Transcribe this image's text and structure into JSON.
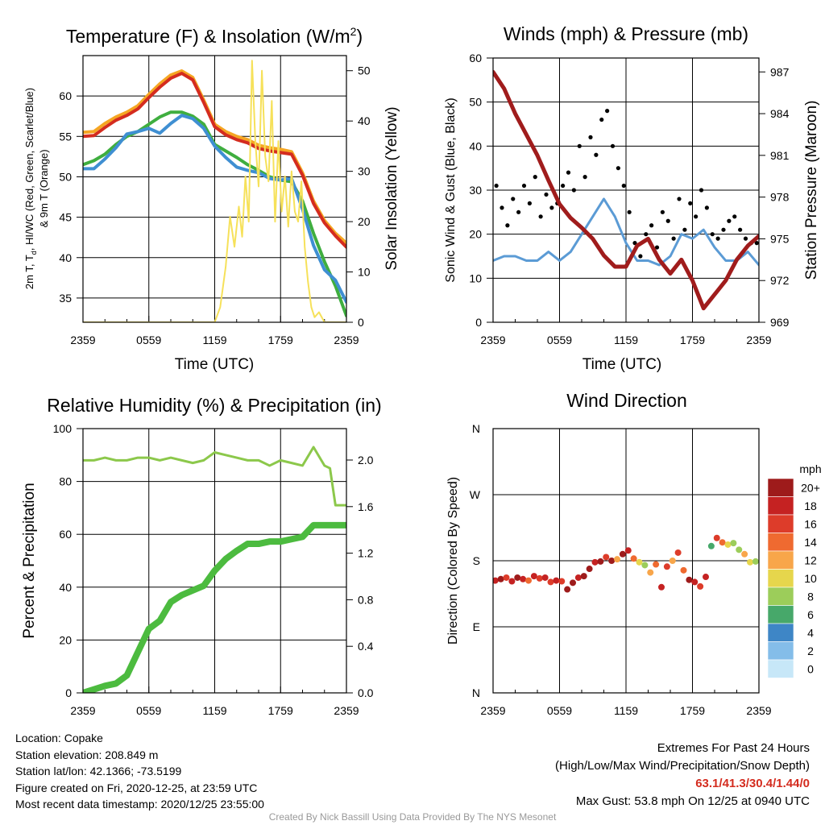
{
  "panels": {
    "temperature": {
      "title_main": "Temperature (F) & Insolation (W/m",
      "title_sup": "2",
      "title_end": ")",
      "ylabel_left_line1_a": "2m T, T",
      "ylabel_left_line1_sub": "d",
      "ylabel_left_line1_b": ", HI/WC (Red, Green, Scarlet/Blue)",
      "ylabel_left_line2": "& 9m T (Orange)",
      "ylabel_right": "Solar Insolation (Yellow)",
      "xlabel": "Time (UTC)"
    },
    "winds": {
      "title": "Winds (mph) & Pressure (mb)",
      "ylabel_left": "Sonic Wind & Gust (Blue, Black)",
      "ylabel_right": "Station Pressure (Maroon)",
      "xlabel": "Time (UTC)"
    },
    "humidity": {
      "title": "Relative Humidity (%) & Precipitation (in)",
      "ylabel_left": "Percent & Precipitation"
    },
    "direction": {
      "title": "Wind Direction",
      "ylabel_left": "Direction (Colored By Speed)",
      "colorbar_title": "mph",
      "colorbar_labels": [
        "20+",
        "18",
        "16",
        "14",
        "12",
        "10",
        "8",
        "6",
        "4",
        "2",
        "0"
      ],
      "colorbar_colors": [
        "#9e1b1b",
        "#c52222",
        "#dd3c2a",
        "#ef6a30",
        "#f8a64a",
        "#e6d64c",
        "#9ccd5a",
        "#47a86a",
        "#3e86c6",
        "#84bde9",
        "#c7e7f8"
      ]
    }
  },
  "colors": {
    "temp_red": "#d42c1f",
    "temp9m_orange": "#f5a623",
    "dewpoint_green": "#3fae3f",
    "heat_index_scarlet": "#ff2a1a",
    "wind_chill_blue": "#3f8fd2",
    "insolation_yellow": "#f6e15a",
    "wind_blue": "#5b9bd5",
    "gust_black": "#000000",
    "pressure_maroon": "#a01c1c",
    "rh_lightgreen": "#8cc84b",
    "precip_green": "#4cbb3f"
  },
  "info": {
    "location": "Location: Copake",
    "elevation": "Station elevation: 208.849 m",
    "latlon": "Station lat/lon: 42.1366; -73.5199",
    "created": "Figure created on Fri, 2020-12-25, at 23:59 UTC",
    "recent": "Most recent data timestamp: 2020/12/25 23:55:00",
    "extremes_title": "Extremes For Past 24 Hours",
    "extremes_sub": "(High/Low/Max Wind/Precipitation/Snow Depth)",
    "extremes_values": "63.1/41.3/30.4/1.44/0",
    "max_gust": "Max Gust: 53.8 mph On 12/25 at 0940 UTC"
  },
  "credit": "Created By Nick Bassill Using Data Provided By The NYS Mesonet",
  "chart_data": [
    {
      "type": "line",
      "title": "Temperature (F) & Insolation (W/m2)",
      "xlabel": "Time (UTC)",
      "x_ticks": [
        "2359",
        "0559",
        "1159",
        "1759",
        "2359"
      ],
      "xlim": [
        0,
        24
      ],
      "ylim": [
        32,
        65
      ],
      "y_ticks": [
        35,
        40,
        45,
        50,
        55,
        60
      ],
      "y2lim": [
        0,
        53
      ],
      "y2_ticks": [
        0,
        10,
        20,
        30,
        40,
        50
      ],
      "grid": true,
      "series": [
        {
          "color": "#f5a623",
          "width": 4,
          "x": [
            0,
            1,
            2,
            3,
            4,
            5,
            6,
            7,
            8,
            9,
            10,
            11,
            12,
            13,
            14,
            15,
            16,
            17,
            18,
            19,
            20,
            21,
            22,
            23,
            24
          ],
          "values": [
            55.5,
            55.6,
            56.6,
            57.4,
            58.0,
            58.8,
            60.2,
            61.5,
            62.6,
            63.1,
            62.3,
            59.5,
            56.5,
            55.6,
            55.0,
            54.6,
            53.9,
            53.6,
            53.4,
            53.1,
            50.5,
            47.0,
            44.6,
            43.0,
            41.8
          ]
        },
        {
          "color": "#d42c1f",
          "width": 4,
          "x": [
            0,
            1,
            2,
            3,
            4,
            5,
            6,
            7,
            8,
            9,
            10,
            11,
            12,
            13,
            14,
            15,
            16,
            17,
            18,
            19,
            20,
            21,
            22,
            23,
            24
          ],
          "values": [
            55.0,
            55.1,
            56.1,
            57.0,
            57.6,
            58.4,
            59.8,
            61.1,
            62.2,
            62.8,
            62.0,
            59.2,
            56.2,
            55.2,
            54.6,
            54.2,
            53.5,
            53.2,
            53.0,
            52.8,
            50.2,
            46.7,
            44.3,
            42.7,
            41.3
          ]
        },
        {
          "color": "#3fae3f",
          "width": 4,
          "x": [
            0,
            1,
            2,
            3,
            4,
            5,
            6,
            7,
            8,
            9,
            10,
            11,
            12,
            13,
            14,
            15,
            16,
            17,
            18,
            19,
            20,
            21,
            22,
            23,
            24
          ],
          "values": [
            51.5,
            52.0,
            52.8,
            54.0,
            55.0,
            55.6,
            56.5,
            57.4,
            58.0,
            58.0,
            57.5,
            56.5,
            54.0,
            53.2,
            52.4,
            51.5,
            50.8,
            50.0,
            49.6,
            49.4,
            47.0,
            43.0,
            39.5,
            36.5,
            32.8
          ]
        },
        {
          "color": "#3f8fd2",
          "width": 4,
          "x": [
            0,
            1,
            2,
            3,
            4,
            5,
            6,
            7,
            8,
            9,
            10,
            11,
            12,
            13,
            14,
            15,
            16,
            17,
            18,
            19,
            20,
            21,
            22,
            23,
            24
          ],
          "values": [
            51.0,
            51.0,
            52.2,
            53.6,
            55.3,
            55.6,
            56.0,
            55.4,
            56.6,
            57.6,
            57.2,
            56.0,
            53.8,
            52.4,
            51.2,
            50.8,
            50.5,
            49.8,
            49.6,
            49.8,
            46.0,
            41.5,
            38.5,
            37.2,
            34.5
          ]
        },
        {
          "color": "#f6e15a",
          "width": 2,
          "axis": "right",
          "x": [
            0,
            3,
            6,
            9,
            12,
            12.5,
            13.0,
            13.4,
            13.8,
            14.2,
            14.5,
            14.8,
            15.1,
            15.4,
            15.7,
            16.0,
            16.3,
            16.6,
            16.9,
            17.2,
            17.5,
            17.8,
            18.1,
            18.4,
            18.7,
            19.0,
            19.3,
            19.6,
            19.9,
            20.2,
            20.5,
            20.8,
            21.1,
            21.5,
            22.0,
            22.5,
            24
          ],
          "values": [
            0,
            0,
            0,
            0,
            0,
            3,
            11,
            21,
            15,
            23,
            17,
            29,
            20,
            52,
            36,
            27,
            50,
            33,
            28,
            44,
            20,
            36,
            22,
            29,
            19,
            30,
            22,
            20,
            28,
            15,
            8,
            3,
            1,
            2,
            0,
            0,
            0
          ]
        }
      ]
    },
    {
      "type": "line",
      "title": "Winds (mph) & Pressure (mb)",
      "xlabel": "Time (UTC)",
      "x_ticks": [
        "2359",
        "0559",
        "1159",
        "1759",
        "2359"
      ],
      "xlim": [
        0,
        24
      ],
      "ylim": [
        0,
        60
      ],
      "y_ticks": [
        0,
        10,
        20,
        30,
        40,
        50,
        60
      ],
      "y2lim": [
        969,
        988
      ],
      "y2_ticks": [
        969,
        972,
        975,
        978,
        981,
        984,
        987
      ],
      "grid": true,
      "series": [
        {
          "color": "#5b9bd5",
          "width": 3,
          "x": [
            0,
            1,
            2,
            3,
            4,
            5,
            6,
            7,
            8,
            9,
            10,
            11,
            12,
            13,
            14,
            15,
            16,
            17,
            18,
            19,
            20,
            21,
            22,
            23,
            24
          ],
          "values": [
            14,
            15,
            15,
            14,
            14,
            16,
            14,
            16,
            20,
            24,
            28,
            24,
            18,
            14,
            14,
            13,
            15,
            20,
            19,
            21,
            17,
            14,
            14,
            16,
            13
          ]
        },
        {
          "color": "#000000",
          "type": "scatter",
          "x": [
            0.3,
            0.8,
            1.3,
            1.8,
            2.3,
            2.8,
            3.3,
            3.8,
            4.3,
            4.8,
            5.3,
            5.8,
            6.3,
            6.8,
            7.3,
            7.8,
            8.3,
            8.8,
            9.3,
            9.8,
            10.3,
            10.8,
            11.3,
            11.8,
            12.3,
            12.8,
            13.3,
            13.8,
            14.3,
            14.8,
            15.3,
            15.8,
            16.3,
            16.8,
            17.3,
            17.8,
            18.3,
            18.8,
            19.3,
            19.8,
            20.3,
            20.8,
            21.3,
            21.8,
            22.3,
            22.8,
            23.3,
            23.8
          ],
          "values": [
            31,
            26,
            22,
            28,
            25,
            31,
            27,
            33,
            24,
            29,
            26,
            27,
            31,
            34,
            30,
            40,
            33,
            42,
            38,
            46,
            48,
            40,
            35,
            31,
            25,
            18,
            15,
            20,
            22,
            17,
            25,
            23,
            19,
            28,
            21,
            27,
            24,
            30,
            26,
            20,
            19,
            21,
            23,
            24,
            21,
            19,
            18,
            18
          ]
        },
        {
          "color": "#a01c1c",
          "width": 5,
          "axis": "right",
          "x": [
            0,
            1,
            2,
            3,
            4,
            5,
            6,
            7,
            8,
            9,
            10,
            11,
            12,
            13,
            14,
            15,
            16,
            17,
            18,
            19,
            20,
            21,
            22,
            23,
            24
          ],
          "values": [
            987.0,
            985.8,
            984.0,
            982.5,
            981.0,
            979.2,
            977.5,
            976.5,
            975.8,
            975.0,
            973.8,
            973.0,
            973.0,
            974.5,
            975.0,
            973.5,
            972.5,
            973.5,
            972.0,
            970.0,
            971.0,
            972.0,
            973.5,
            974.5,
            975.2
          ]
        }
      ]
    },
    {
      "type": "line",
      "title": "Relative Humidity (%) & Precipitation (in)",
      "x_ticks": [
        "2359",
        "0559",
        "1159",
        "1759",
        "2359"
      ],
      "xlim": [
        0,
        24
      ],
      "ylim": [
        0,
        100
      ],
      "y_ticks": [
        0,
        20,
        40,
        60,
        80,
        100
      ],
      "y2lim": [
        0,
        2.27
      ],
      "y2_ticks": [
        0.0,
        0.4,
        0.8,
        1.2,
        1.6,
        2.0
      ],
      "grid": true,
      "series": [
        {
          "color": "#8cc84b",
          "width": 3,
          "x": [
            0,
            1,
            2,
            3,
            4,
            5,
            6,
            7,
            8,
            9,
            10,
            11,
            12,
            13,
            14,
            15,
            16,
            17,
            18,
            19,
            20,
            21,
            22,
            22.5,
            23,
            24
          ],
          "values": [
            88,
            88,
            89,
            88,
            88,
            89,
            89,
            88,
            89,
            88,
            87,
            88,
            91,
            90,
            89,
            88,
            88,
            86,
            88,
            87,
            86,
            93,
            86,
            85,
            71,
            71
          ]
        },
        {
          "color": "#4cbb3f",
          "width": 8,
          "axis": "right",
          "x": [
            0,
            1,
            2,
            3,
            4,
            5,
            6,
            7,
            8,
            9,
            10,
            11,
            12,
            13,
            14,
            15,
            16,
            17,
            18,
            19,
            20,
            21,
            22,
            23,
            24
          ],
          "values": [
            0.0,
            0.03,
            0.06,
            0.08,
            0.15,
            0.35,
            0.55,
            0.62,
            0.78,
            0.84,
            0.88,
            0.92,
            1.05,
            1.15,
            1.22,
            1.28,
            1.28,
            1.3,
            1.3,
            1.32,
            1.34,
            1.44,
            1.44,
            1.44,
            1.44
          ]
        }
      ]
    },
    {
      "type": "scatter",
      "title": "Wind Direction",
      "ylabel": "Direction (Colored By Speed)",
      "x_ticks": [
        "2359",
        "0559",
        "1159",
        "1759",
        "2359"
      ],
      "xlim": [
        0,
        24
      ],
      "y_ticks": [
        "N",
        "E",
        "S",
        "W",
        "N"
      ],
      "ylim": [
        0,
        360
      ],
      "grid": true,
      "x": [
        0.2,
        0.7,
        1.2,
        1.7,
        2.2,
        2.7,
        3.2,
        3.7,
        4.2,
        4.7,
        5.2,
        5.7,
        6.2,
        6.7,
        7.2,
        7.7,
        8.2,
        8.7,
        9.2,
        9.7,
        10.2,
        10.7,
        11.2,
        11.7,
        12.2,
        12.7,
        13.2,
        13.7,
        14.2,
        14.7,
        15.2,
        15.7,
        16.2,
        16.7,
        17.2,
        17.7,
        18.2,
        18.7,
        19.2,
        19.7,
        20.2,
        20.7,
        21.2,
        21.7,
        22.2,
        22.7,
        23.2,
        23.7
      ],
      "values": [
        153,
        155,
        157,
        152,
        157,
        155,
        153,
        159,
        156,
        157,
        151,
        153,
        152,
        141,
        150,
        157,
        159,
        169,
        178,
        179,
        185,
        180,
        182,
        189,
        194,
        183,
        178,
        174,
        164,
        175,
        144,
        172,
        180,
        191,
        167,
        154,
        151,
        145,
        158,
        200,
        211,
        205,
        202,
        204,
        195,
        189,
        178,
        179
      ],
      "speeds": [
        18,
        19,
        16,
        17,
        20,
        18,
        14,
        17,
        16,
        18,
        15,
        17,
        16,
        20,
        20,
        18,
        19,
        20,
        18,
        20,
        16,
        20,
        12,
        20,
        18,
        13,
        10,
        8,
        12,
        14,
        18,
        16,
        12,
        16,
        14,
        20,
        18,
        16,
        18,
        6,
        16,
        14,
        10,
        8,
        8,
        12,
        10,
        8
      ]
    }
  ]
}
